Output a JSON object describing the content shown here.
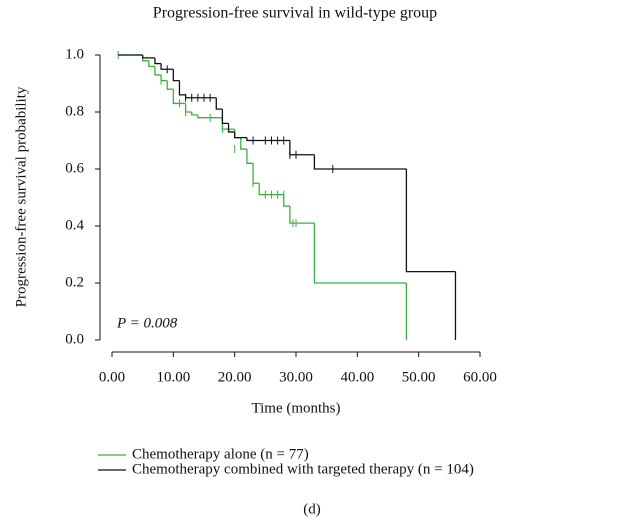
{
  "chart_data": {
    "type": "kaplan-meier",
    "title": "Progression-free survival in wild-type group",
    "x_label": "Time (months)",
    "y_label": "Progression-free survival probability",
    "annotation": "P = 0.008",
    "caption": "(d)",
    "xlim": [
      0,
      60
    ],
    "ylim": [
      0,
      1
    ],
    "xticks": [
      {
        "value": 0,
        "label": "0.00"
      },
      {
        "value": 10,
        "label": "10.00"
      },
      {
        "value": 20,
        "label": "20.00"
      },
      {
        "value": 30,
        "label": "30.00"
      },
      {
        "value": 40,
        "label": "40.00"
      },
      {
        "value": 50,
        "label": "50.00"
      },
      {
        "value": 60,
        "label": "60.00"
      }
    ],
    "yticks": [
      {
        "value": 0,
        "label": "0.0"
      },
      0.2,
      0.4,
      0.6,
      0.8,
      {
        "value": 1,
        "label": "1.0"
      }
    ],
    "series": [
      {
        "name": "Chemotherapy alone (n = 77)",
        "color": "#3cb043",
        "x": [
          1,
          5,
          6,
          7,
          8,
          9,
          10,
          12,
          13,
          14,
          18,
          20,
          21,
          22,
          23,
          24,
          28,
          29,
          33,
          48
        ],
        "values": [
          1.0,
          0.98,
          0.96,
          0.93,
          0.91,
          0.88,
          0.83,
          0.8,
          0.79,
          0.78,
          0.74,
          0.71,
          0.67,
          0.62,
          0.55,
          0.51,
          0.47,
          0.41,
          0.2,
          0.0
        ],
        "censor_x": [
          1,
          8,
          11,
          12,
          16,
          18,
          20,
          23,
          25,
          26,
          27,
          28,
          29.5,
          30
        ],
        "censor_values": [
          1.0,
          0.91,
          0.83,
          0.8,
          0.78,
          0.74,
          0.67,
          0.55,
          0.51,
          0.51,
          0.51,
          0.51,
          0.41,
          0.41
        ]
      },
      {
        "name": "Chemotherapy combined with targeted therapy (n = 104)",
        "color": "#111111",
        "x": [
          1,
          5,
          7,
          8,
          10,
          11,
          12,
          17,
          18,
          19,
          20,
          22,
          29,
          33,
          48,
          56
        ],
        "values": [
          1.0,
          0.99,
          0.97,
          0.95,
          0.91,
          0.86,
          0.85,
          0.81,
          0.76,
          0.73,
          0.71,
          0.7,
          0.65,
          0.6,
          0.24,
          0.0
        ],
        "censor_x": [
          9,
          12,
          13,
          14,
          15,
          16,
          23,
          25,
          26,
          27,
          28,
          29,
          30,
          36
        ],
        "censor_values": [
          0.95,
          0.85,
          0.85,
          0.85,
          0.85,
          0.85,
          0.7,
          0.7,
          0.7,
          0.7,
          0.7,
          0.65,
          0.65,
          0.6
        ]
      }
    ]
  }
}
